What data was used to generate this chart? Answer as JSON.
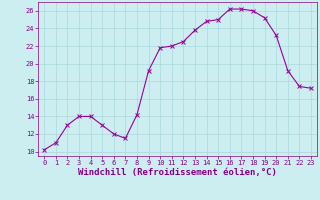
{
  "hours": [
    0,
    1,
    2,
    3,
    4,
    5,
    6,
    7,
    8,
    9,
    10,
    11,
    12,
    13,
    14,
    15,
    16,
    17,
    18,
    19,
    20,
    21,
    22,
    23
  ],
  "values": [
    10.2,
    11.0,
    13.0,
    14.0,
    14.0,
    13.0,
    12.0,
    11.5,
    14.2,
    19.2,
    21.8,
    22.0,
    22.5,
    23.8,
    24.8,
    25.0,
    26.2,
    26.2,
    26.0,
    25.2,
    23.2,
    19.2,
    17.4,
    17.2
  ],
  "line_color": "#990099",
  "marker": "x",
  "marker_size": 2.5,
  "bg_color": "#cceef0",
  "grid_color": "#aad8dc",
  "xlabel": "Windchill (Refroidissement éolien,°C)",
  "xlim": [
    -0.5,
    23.5
  ],
  "ylim": [
    9.5,
    27
  ],
  "yticks": [
    10,
    12,
    14,
    16,
    18,
    20,
    22,
    24,
    26
  ],
  "xticks": [
    0,
    1,
    2,
    3,
    4,
    5,
    6,
    7,
    8,
    9,
    10,
    11,
    12,
    13,
    14,
    15,
    16,
    17,
    18,
    19,
    20,
    21,
    22,
    23
  ],
  "tick_color": "#880088",
  "label_color": "#880088",
  "xlabel_fontsize": 6.5,
  "tick_fontsize": 5.0
}
